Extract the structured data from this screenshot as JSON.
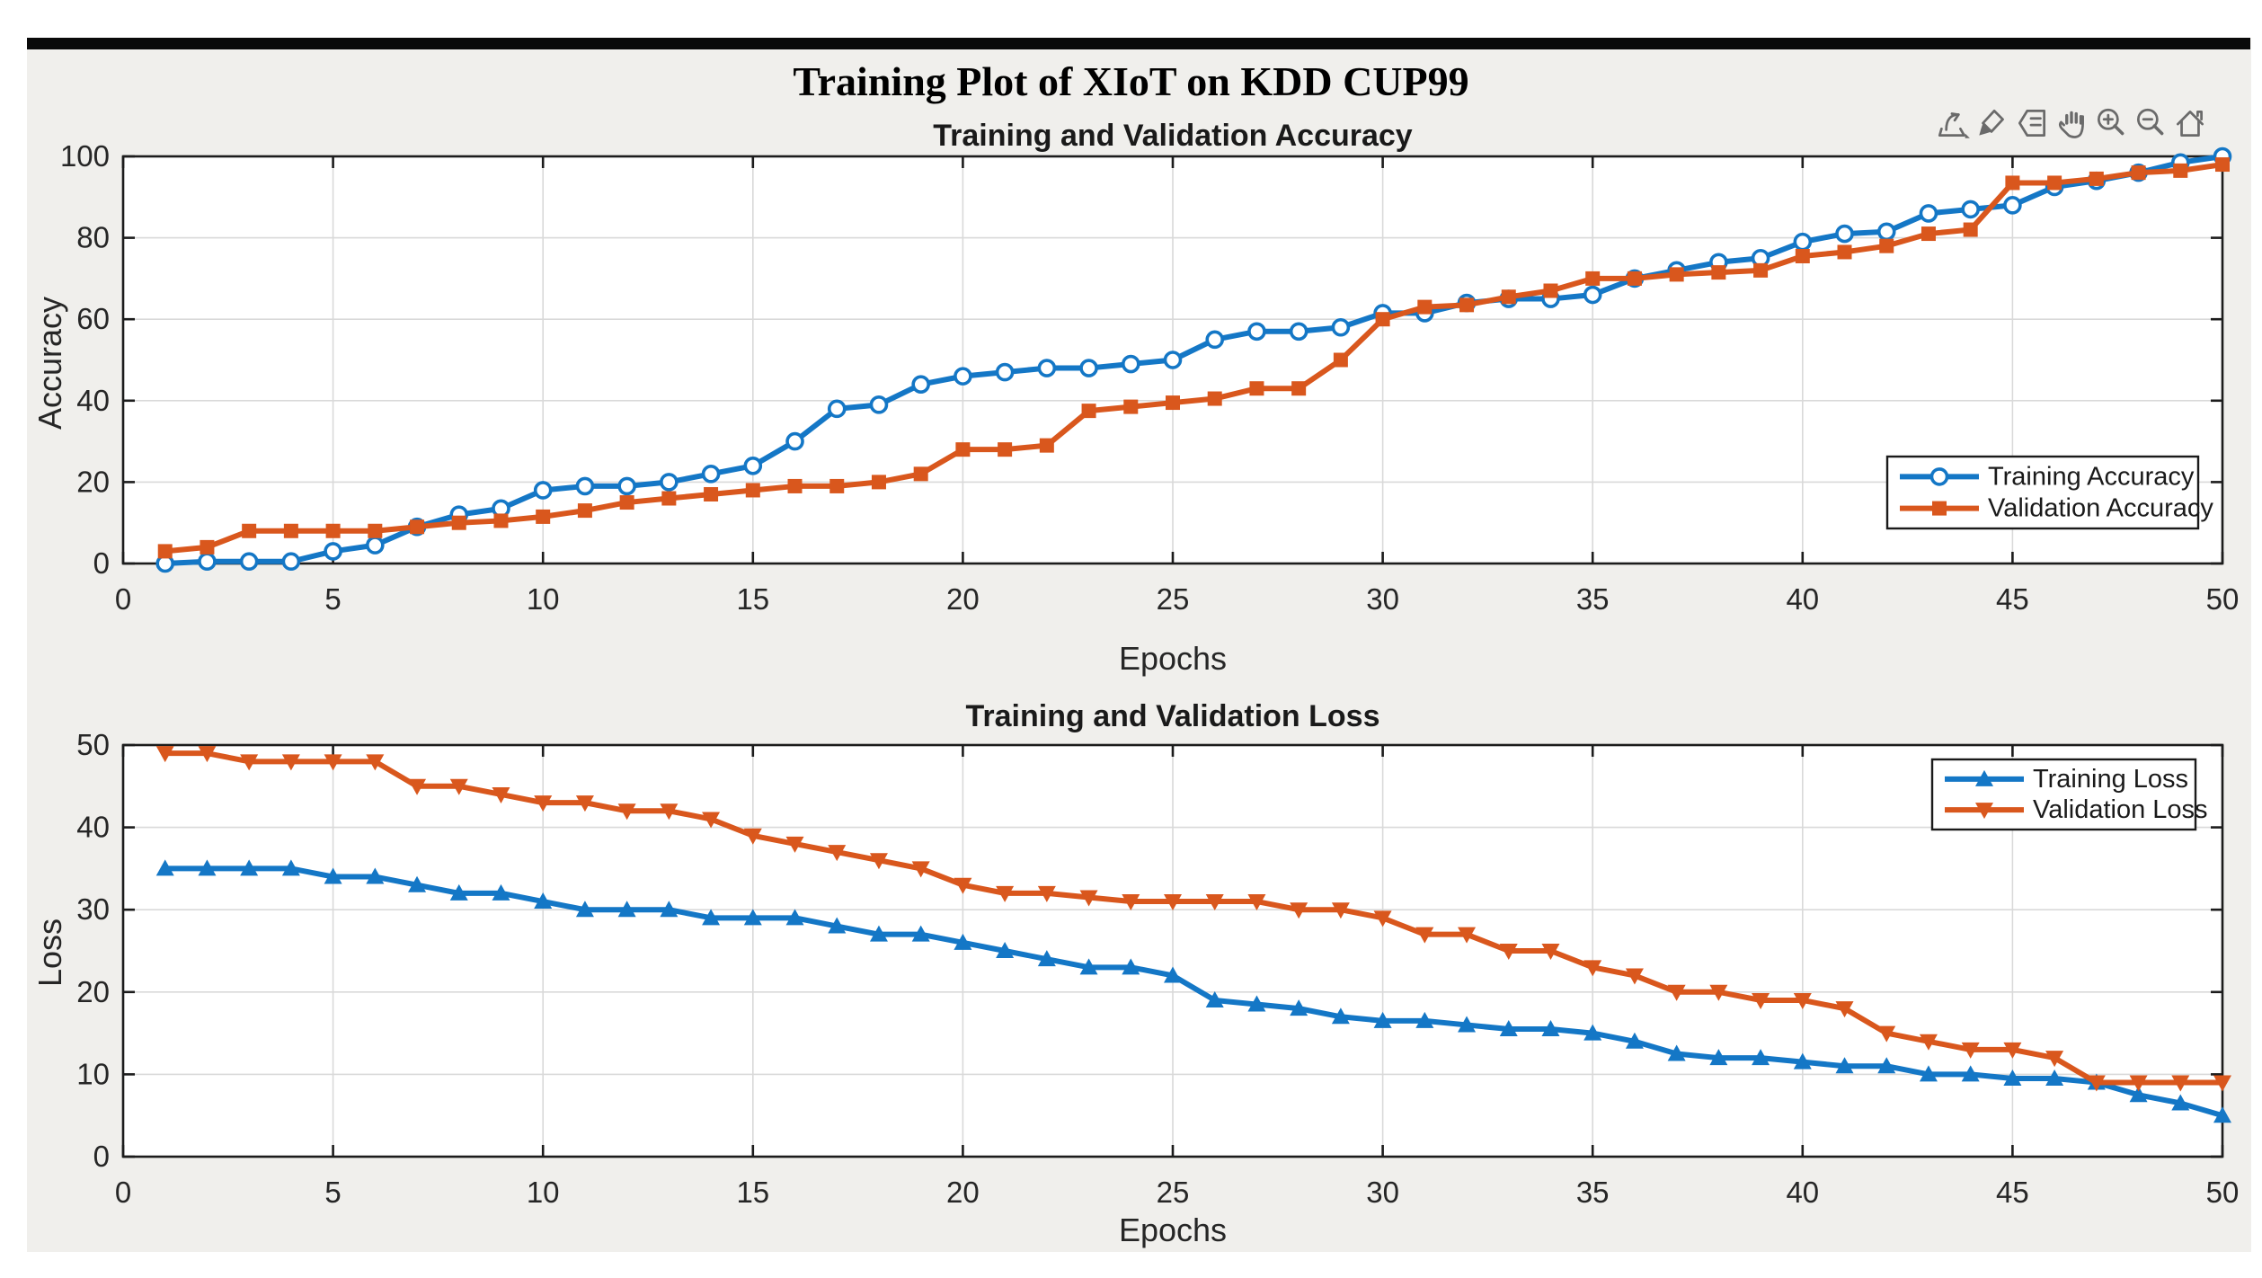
{
  "figure": {
    "title": "Training Plot of XIoT on KDD CUP99"
  },
  "toolbar": {
    "icons": [
      "export",
      "brush",
      "data-tips",
      "pan",
      "zoom-in",
      "zoom-out",
      "restore-view"
    ]
  },
  "colors": {
    "training": "#1477C6",
    "validation": "#D9571D",
    "figure_bg": "#F0EFEC",
    "plot_bg": "#FFFFFF",
    "grid": "#D9D9D9",
    "axis": "#1C1C1C",
    "tick_text": "#262626",
    "toolbar_icon": "#6A6A6A"
  },
  "chart_data": [
    {
      "type": "line",
      "title": "Training and Validation Accuracy",
      "xlabel": "Epochs",
      "ylabel": "Accuracy",
      "xlim": [
        0,
        50
      ],
      "ylim": [
        0,
        100
      ],
      "xticks": [
        0,
        5,
        10,
        15,
        20,
        25,
        30,
        35,
        40,
        45,
        50
      ],
      "yticks": [
        0,
        20,
        40,
        60,
        80,
        100
      ],
      "grid": true,
      "legend_position": "right-middle",
      "epochs": [
        1,
        2,
        3,
        4,
        5,
        6,
        7,
        8,
        9,
        10,
        11,
        12,
        13,
        14,
        15,
        16,
        17,
        18,
        19,
        20,
        21,
        22,
        23,
        24,
        25,
        26,
        27,
        28,
        29,
        30,
        31,
        32,
        33,
        34,
        35,
        36,
        37,
        38,
        39,
        40,
        41,
        42,
        43,
        44,
        45,
        46,
        47,
        48,
        49,
        50
      ],
      "series": [
        {
          "name": "Training Accuracy",
          "marker": "circle",
          "color": "#1477C6",
          "values": [
            0,
            0.5,
            0.5,
            0.5,
            3,
            4.5,
            9,
            12,
            13.5,
            18,
            19,
            19,
            20,
            22,
            24,
            30,
            38,
            39,
            44,
            46,
            47,
            48,
            48,
            49,
            50,
            55,
            57,
            57,
            58,
            61.5,
            61.5,
            64,
            65,
            65,
            66,
            70,
            72,
            74,
            75,
            79,
            81,
            81.5,
            86,
            87,
            88,
            92.5,
            94,
            96,
            98.5,
            100
          ]
        },
        {
          "name": "Validation Accuracy",
          "marker": "square",
          "color": "#D9571D",
          "values": [
            3,
            4,
            8,
            8,
            8,
            8,
            9,
            10,
            10.5,
            11.5,
            13,
            15,
            16,
            17,
            18,
            19,
            19,
            20,
            22,
            28,
            28,
            29,
            37.5,
            38.5,
            39.5,
            40.5,
            43,
            43,
            50,
            60,
            63,
            63.5,
            65.5,
            67,
            70,
            70,
            71,
            71.5,
            72,
            75.5,
            76.5,
            78,
            81,
            82,
            93.5,
            93.5,
            94.5,
            96,
            96.5,
            98
          ]
        }
      ]
    },
    {
      "type": "line",
      "title": "Training and Validation Loss",
      "xlabel": "Epochs",
      "ylabel": "Loss",
      "xlim": [
        0,
        50
      ],
      "ylim": [
        0,
        50
      ],
      "xticks": [
        0,
        5,
        10,
        15,
        20,
        25,
        30,
        35,
        40,
        45,
        50
      ],
      "yticks": [
        0,
        10,
        20,
        30,
        40,
        50
      ],
      "grid": true,
      "legend_position": "top-right",
      "epochs": [
        1,
        2,
        3,
        4,
        5,
        6,
        7,
        8,
        9,
        10,
        11,
        12,
        13,
        14,
        15,
        16,
        17,
        18,
        19,
        20,
        21,
        22,
        23,
        24,
        25,
        26,
        27,
        28,
        29,
        30,
        31,
        32,
        33,
        34,
        35,
        36,
        37,
        38,
        39,
        40,
        41,
        42,
        43,
        44,
        45,
        46,
        47,
        48,
        49,
        50
      ],
      "series": [
        {
          "name": "Training Loss",
          "marker": "triangle-up",
          "color": "#1477C6",
          "values": [
            35,
            35,
            35,
            35,
            34,
            34,
            33,
            32,
            32,
            31,
            30,
            30,
            30,
            29,
            29,
            29,
            28,
            27,
            27,
            26,
            25,
            24,
            23,
            23,
            22,
            19,
            18.5,
            18,
            17,
            16.5,
            16.5,
            16,
            15.5,
            15.5,
            15,
            14,
            12.5,
            12,
            12,
            11.5,
            11,
            11,
            10,
            10,
            9.5,
            9.5,
            9,
            7.5,
            6.5,
            5
          ]
        },
        {
          "name": "Validation Loss",
          "marker": "triangle-down",
          "color": "#D9571D",
          "values": [
            49,
            49,
            48,
            48,
            48,
            48,
            45,
            45,
            44,
            43,
            43,
            42,
            42,
            41,
            39,
            38,
            37,
            36,
            35,
            33,
            32,
            32,
            31.5,
            31,
            31,
            31,
            31,
            30,
            30,
            29,
            27,
            27,
            25,
            25,
            23,
            22,
            20,
            20,
            19,
            19,
            18,
            15,
            14,
            13,
            13,
            12,
            9,
            9,
            9,
            9
          ]
        }
      ]
    }
  ]
}
